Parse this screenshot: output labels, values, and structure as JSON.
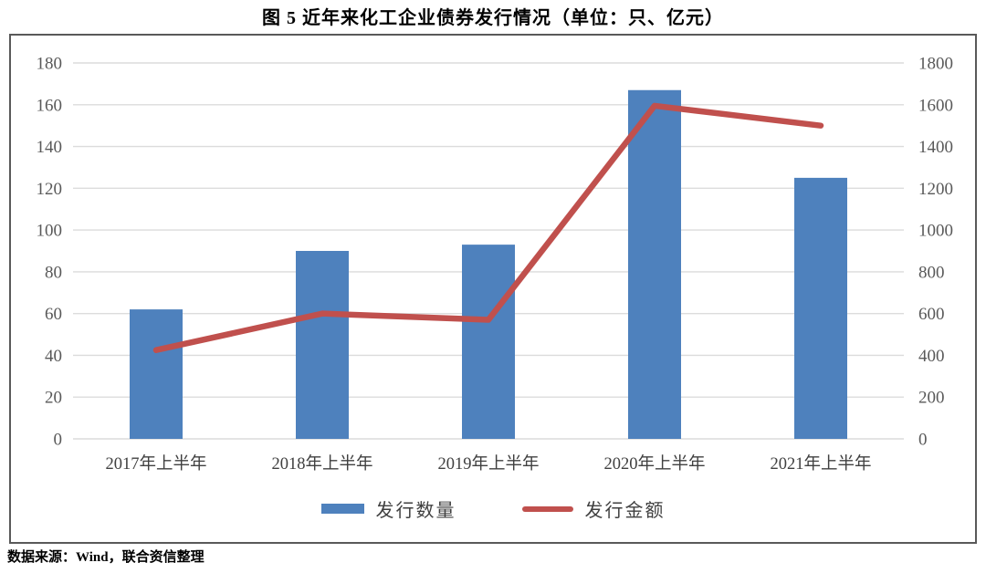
{
  "title": "图 5  近年来化工企业债券发行情况（单位：只、亿元）",
  "source_note": "数据来源：Wind，联合资信整理",
  "legend": [
    {
      "label": "发行数量",
      "marker": "bar-swatch",
      "color": "#4E81BD"
    },
    {
      "label": "发行金额",
      "marker": "line-swatch",
      "color": "#C0504D"
    }
  ],
  "colors": {
    "bar": "#4E81BD",
    "line": "#C0504D",
    "grid": "#DCDCDC",
    "axis_text": "#595959",
    "category_text": "#404040",
    "box_border": "#595959"
  },
  "chart_data": {
    "type": "bar+line combo",
    "title": "图 5  近年来化工企业债券发行情况（单位：只、亿元）",
    "categories": [
      "2017年上半年",
      "2018年上半年",
      "2019年上半年",
      "2020年上半年",
      "2021年上半年"
    ],
    "series": [
      {
        "name": "发行数量",
        "type": "bar",
        "axis": "left",
        "unit": "只",
        "color": "#4E81BD",
        "values": [
          62,
          90,
          93,
          167,
          125
        ]
      },
      {
        "name": "发行金额",
        "type": "line",
        "axis": "right",
        "unit": "亿元",
        "color": "#C0504D",
        "values": [
          425,
          600,
          570,
          1595,
          1500
        ]
      }
    ],
    "left_axis": {
      "min": 0,
      "max": 180,
      "step": 20
    },
    "right_axis": {
      "min": 0,
      "max": 1800,
      "step": 200
    },
    "grid": true,
    "legend_position": "bottom"
  }
}
